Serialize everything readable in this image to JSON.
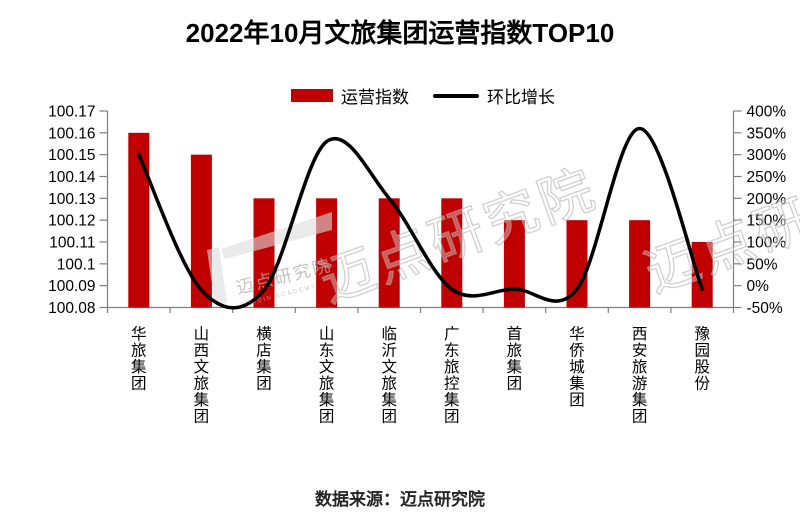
{
  "title": "2022年10月文旅集团运营指数TOP10",
  "legend": {
    "bar_label": "运营指数",
    "line_label": "环比增长"
  },
  "footer": {
    "source": "数据来源：迈点研究院"
  },
  "colors": {
    "bar": "#c00000",
    "line": "#000000",
    "axis": "#7f7f7f",
    "text": "#000000",
    "watermark": "#c9c9c9"
  },
  "watermark": {
    "text": "迈点研究院",
    "caption": "MEADIN ACADEMY"
  },
  "chart_data": {
    "type": "combo-bar-line",
    "title": "2022年10月文旅集团运营指数TOP10",
    "categories": [
      "华旅集团",
      "山西文旅集团",
      "横店集团",
      "山东文旅集团",
      "临沂文旅集团",
      "广东旅控集团",
      "首旅集团",
      "华侨城集团",
      "西安旅游集团",
      "豫园股份"
    ],
    "series": [
      {
        "name": "运营指数",
        "type": "bar",
        "axis": "left",
        "color": "#c00000",
        "values": [
          100.16,
          100.15,
          100.13,
          100.13,
          100.13,
          100.13,
          100.12,
          100.12,
          100.12,
          100.11
        ]
      },
      {
        "name": "环比增长",
        "type": "line",
        "axis": "right",
        "color": "#000000",
        "unit": "%",
        "values": [
          300,
          -10,
          -10,
          330,
          200,
          -8,
          -8,
          -8,
          360,
          -8
        ]
      }
    ],
    "left_axis": {
      "min": 100.08,
      "max": 100.17,
      "step": 0.01,
      "tick_labels": [
        "100.17",
        "100.16",
        "100.15",
        "100.14",
        "100.13",
        "100.12",
        "100.11",
        "100.1",
        "100.09",
        "100.08"
      ]
    },
    "right_axis": {
      "min": -50,
      "max": 400,
      "step": 50,
      "tick_labels": [
        "400%",
        "350%",
        "300%",
        "250%",
        "200%",
        "150%",
        "100%",
        "50%",
        "0%",
        "-50%"
      ]
    },
    "grid": false,
    "legend_position": "top"
  }
}
